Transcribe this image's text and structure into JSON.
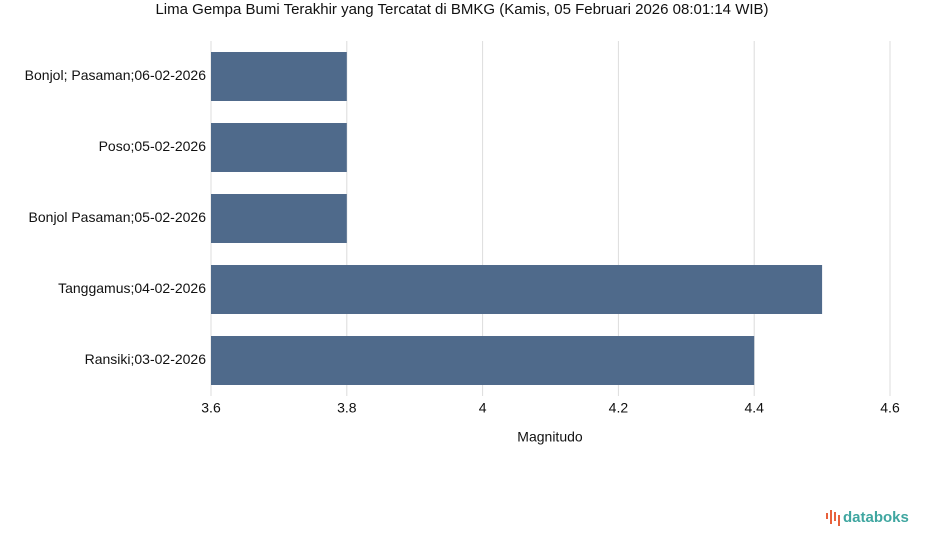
{
  "chart_data": {
    "type": "hbar",
    "title": "Lima Gempa Bumi Terakhir yang Tercatat di BMKG (Kamis, 05 Februari 2026 08:01:14 WIB)",
    "categories": [
      "Bonjol; Pasaman;06-02-2026",
      "Poso;05-02-2026",
      "Bonjol Pasaman;05-02-2026",
      "Tanggamus;04-02-2026",
      "Ransiki;03-02-2026"
    ],
    "values": [
      3.8,
      3.8,
      3.8,
      4.5,
      4.4
    ],
    "color": "#4f6a8b",
    "xlabel": "Magnitudo",
    "xlim": [
      3.6,
      4.6
    ],
    "xticks": [
      3.6,
      3.8,
      4,
      4.2,
      4.4,
      4.6
    ],
    "grid": true,
    "watermark": "databoks"
  }
}
